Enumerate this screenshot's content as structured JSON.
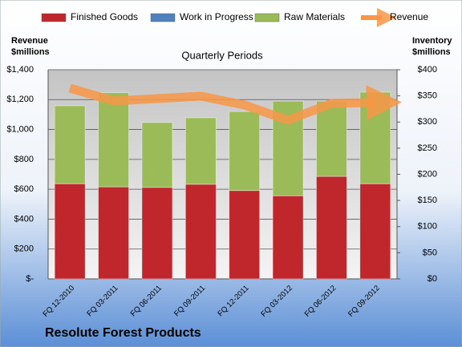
{
  "chart_data": {
    "type": "combo",
    "title": "Resolute Forest Products",
    "xlabel": "Quarterly Periods",
    "ylabel": "Revenue\n$millions",
    "y2label": "Inventory\n$millions",
    "categories": [
      "FQ 12-2010",
      "FQ 03-2011",
      "FQ 06-2011",
      "FQ 09-2011",
      "FQ 12-2011",
      "FQ 03-2012",
      "FQ 06-2012",
      "FQ 09-2012"
    ],
    "series": [
      {
        "name": "Finished Goods",
        "type": "bar",
        "axis": "y2",
        "color": "#c0272d",
        "values": [
          182,
          176,
          175,
          181,
          169,
          159,
          196,
          182
        ]
      },
      {
        "name": "Work in Progress",
        "type": "bar",
        "axis": "y2",
        "color": "#4f81bd",
        "values": [
          0,
          0,
          0,
          0,
          0,
          0,
          0,
          0
        ]
      },
      {
        "name": "Raw Materials",
        "type": "bar",
        "axis": "y2",
        "color": "#9bbb59",
        "values": [
          149,
          180,
          124,
          127,
          151,
          181,
          144,
          175
        ]
      },
      {
        "name": "Revenue",
        "type": "line",
        "color": "#f79646",
        "values": [
          1277,
          1191,
          1207,
          1223,
          1164,
          1062,
          1175,
          1180
        ]
      }
    ],
    "ylim": [
      0,
      1400
    ],
    "yticks": [
      {
        "value": 0,
        "label": "$-"
      },
      {
        "value": 200,
        "label": "$200"
      },
      {
        "value": 400,
        "label": "$400"
      },
      {
        "value": 600,
        "label": "$600"
      },
      {
        "value": 800,
        "label": "$800"
      },
      {
        "value": 1000,
        "label": "$1,000"
      },
      {
        "value": 1200,
        "label": "$1,200"
      },
      {
        "value": 1400,
        "label": "$1,400"
      }
    ],
    "y2lim": [
      0,
      400
    ],
    "y2ticks": [
      {
        "value": 0,
        "label": "$0"
      },
      {
        "value": 50,
        "label": "$50"
      },
      {
        "value": 100,
        "label": "$100"
      },
      {
        "value": 150,
        "label": "$150"
      },
      {
        "value": 200,
        "label": "$200"
      },
      {
        "value": 250,
        "label": "$250"
      },
      {
        "value": 300,
        "label": "$300"
      },
      {
        "value": 350,
        "label": "$350"
      },
      {
        "value": 400,
        "label": "$400"
      }
    ],
    "grid": true
  }
}
